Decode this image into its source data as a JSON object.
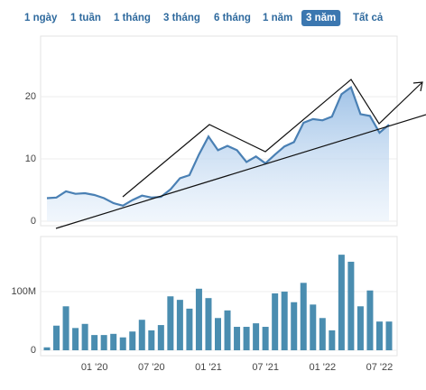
{
  "range_buttons": [
    "1 ngày",
    "1 tuần",
    "1 tháng",
    "3 tháng",
    "6 tháng",
    "1 năm",
    "3 năm",
    "Tất cả"
  ],
  "active_range": 6,
  "chart_data": [
    {
      "type": "area",
      "color": "#4a80b4",
      "values": [
        3.7,
        3.8,
        4.8,
        4.4,
        4.5,
        4.2,
        3.7,
        2.9,
        2.5,
        3.4,
        4.1,
        3.8,
        3.9,
        5.1,
        6.9,
        7.4,
        10.7,
        13.6,
        11.4,
        12.1,
        11.4,
        9.5,
        10.4,
        9.3,
        10.7,
        12.0,
        12.7,
        15.8,
        16.4,
        16.2,
        16.8,
        20.4,
        21.5,
        17.2,
        16.9,
        14.2,
        15.5
      ],
      "ylim": [
        0,
        29
      ],
      "yticks": [
        0,
        10,
        20
      ],
      "grid": true
    },
    {
      "type": "bar",
      "color": "#4a8db0",
      "categories": [
        null,
        null,
        null,
        null,
        null,
        "01 '20",
        null,
        null,
        null,
        null,
        null,
        "07 '20",
        null,
        null,
        null,
        null,
        null,
        "01 '21",
        null,
        null,
        null,
        null,
        null,
        "07 '21",
        null,
        null,
        null,
        null,
        null,
        "01 '22",
        null,
        null,
        null,
        null,
        null,
        "07 '22",
        null
      ],
      "values": [
        5000000,
        42000000,
        75000000,
        38000000,
        45000000,
        26000000,
        26000000,
        28000000,
        22000000,
        32000000,
        52000000,
        34000000,
        43000000,
        92000000,
        86000000,
        71000000,
        105000000,
        89000000,
        55000000,
        68000000,
        40000000,
        40000000,
        46000000,
        40000000,
        97000000,
        100000000,
        82000000,
        115000000,
        78000000,
        55000000,
        34000000,
        163000000,
        151000000,
        75000000,
        102000000,
        49000000,
        49000000
      ],
      "ylim": [
        0,
        194000000
      ],
      "yticks": [
        0,
        {
          "value": 100000000,
          "label": "100M"
        }
      ],
      "grid": true
    }
  ]
}
